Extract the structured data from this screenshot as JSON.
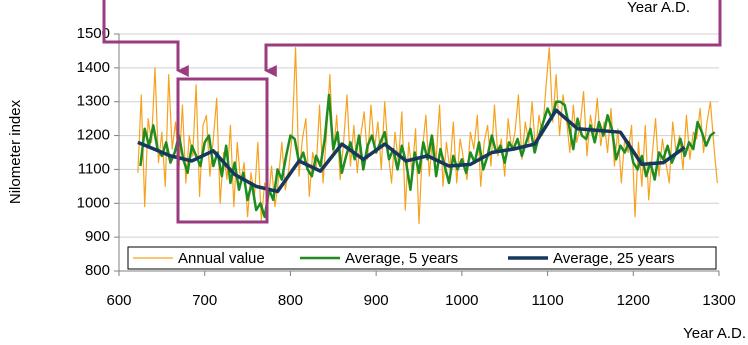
{
  "chart_data": {
    "type": "line",
    "ylabel": "Nilometer index",
    "xlabel": "Year A.D.",
    "annotation": "Year A.D.",
    "xlim": [
      600,
      1300
    ],
    "xticks": [
      600,
      700,
      800,
      900,
      1000,
      1100,
      1200,
      1300
    ],
    "ylim": [
      800,
      1500
    ],
    "yticks": [
      800,
      900,
      1000,
      1100,
      1200,
      1300,
      1400,
      1500
    ],
    "grid": true,
    "legend": "bottom",
    "series": [
      {
        "name": "Annual value",
        "color": "#f5a31f",
        "x": [
          622,
          626,
          630,
          634,
          638,
          642,
          646,
          650,
          654,
          658,
          662,
          666,
          670,
          674,
          678,
          682,
          686,
          690,
          694,
          698,
          702,
          706,
          710,
          714,
          718,
          722,
          726,
          730,
          734,
          738,
          742,
          746,
          750,
          754,
          758,
          762,
          766,
          770,
          774,
          778,
          782,
          786,
          790,
          794,
          798,
          802,
          806,
          810,
          814,
          818,
          822,
          826,
          830,
          834,
          838,
          842,
          846,
          850,
          854,
          858,
          862,
          866,
          870,
          874,
          878,
          882,
          886,
          890,
          894,
          898,
          902,
          906,
          910,
          914,
          918,
          922,
          926,
          930,
          934,
          938,
          942,
          946,
          950,
          954,
          958,
          962,
          966,
          970,
          974,
          978,
          982,
          986,
          990,
          994,
          998,
          1002,
          1006,
          1010,
          1014,
          1018,
          1022,
          1026,
          1030,
          1034,
          1038,
          1042,
          1046,
          1050,
          1054,
          1058,
          1062,
          1066,
          1070,
          1074,
          1078,
          1082,
          1086,
          1090,
          1094,
          1098,
          1102,
          1106,
          1110,
          1114,
          1118,
          1122,
          1126,
          1130,
          1134,
          1138,
          1142,
          1146,
          1150,
          1154,
          1158,
          1162,
          1166,
          1170,
          1174,
          1178,
          1182,
          1186,
          1190,
          1194,
          1198,
          1202,
          1206,
          1210,
          1214,
          1218,
          1222,
          1226,
          1230,
          1234,
          1238,
          1242,
          1246,
          1250,
          1254,
          1258,
          1262,
          1266,
          1270,
          1274,
          1278,
          1282,
          1286,
          1290,
          1294,
          1298
        ],
        "values": [
          1090,
          1320,
          990,
          1250,
          1180,
          1400,
          1120,
          1210,
          1050,
          1380,
          1160,
          1240,
          1100,
          1290,
          1060,
          1200,
          1140,
          1350,
          1020,
          1230,
          1260,
          1080,
          1190,
          1310,
          1000,
          1150,
          1070,
          1230,
          990,
          1180,
          1060,
          1120,
          960,
          1090,
          1020,
          1180,
          950,
          1060,
          1000,
          1110,
          990,
          1070,
          1180,
          1040,
          1100,
          1200,
          1460,
          1080,
          1190,
          1250,
          1020,
          1150,
          1100,
          1290,
          1060,
          1200,
          1380,
          1140,
          1260,
          1070,
          1180,
          1320,
          1110,
          1230,
          1090,
          1200,
          1270,
          1130,
          1290,
          1160,
          1240,
          1100,
          1300,
          1150,
          1060,
          1210,
          1120,
          1270,
          980,
          1180,
          1090,
          1220,
          940,
          1160,
          1260,
          1080,
          1200,
          1130,
          1290,
          1050,
          1180,
          1100,
          1240,
          1060,
          1190,
          1130,
          1070,
          1210,
          1160,
          1260,
          1050,
          1180,
          1230,
          1110,
          1290,
          1140,
          1190,
          1080,
          1250,
          1160,
          1210,
          1320,
          1130,
          1240,
          1180,
          1300,
          1150,
          1260,
          1200,
          1340,
          1460,
          1240,
          1380,
          1200,
          1320,
          1250,
          1150,
          1290,
          1180,
          1230,
          1330,
          1140,
          1260,
          1200,
          1310,
          1170,
          1240,
          1150,
          1280,
          1110,
          1220,
          1060,
          1190,
          1150,
          1230,
          960,
          1180,
          1050,
          1230,
          1010,
          1140,
          1250,
          1080,
          1190,
          1120,
          1060,
          1240,
          1150,
          1200,
          1100,
          1260,
          1130,
          1210,
          1190,
          1280,
          1150,
          1240,
          1300,
          1170,
          1060
        ]
      },
      {
        "name": "Average, 5 years",
        "color": "#1e8c1e",
        "x": [
          625,
          630,
          635,
          640,
          645,
          650,
          655,
          660,
          665,
          670,
          675,
          680,
          685,
          690,
          695,
          700,
          705,
          710,
          715,
          720,
          725,
          730,
          735,
          740,
          745,
          750,
          755,
          760,
          765,
          770,
          775,
          780,
          785,
          790,
          795,
          800,
          805,
          810,
          815,
          820,
          825,
          830,
          835,
          840,
          845,
          850,
          855,
          860,
          865,
          870,
          875,
          880,
          885,
          890,
          895,
          900,
          905,
          910,
          915,
          920,
          925,
          930,
          935,
          940,
          945,
          950,
          955,
          960,
          965,
          970,
          975,
          980,
          985,
          990,
          995,
          1000,
          1005,
          1010,
          1015,
          1020,
          1025,
          1030,
          1035,
          1040,
          1045,
          1050,
          1055,
          1060,
          1065,
          1070,
          1075,
          1080,
          1085,
          1090,
          1095,
          1100,
          1105,
          1110,
          1115,
          1120,
          1125,
          1130,
          1135,
          1140,
          1145,
          1150,
          1155,
          1160,
          1165,
          1170,
          1175,
          1180,
          1185,
          1190,
          1195,
          1200,
          1205,
          1210,
          1215,
          1220,
          1225,
          1230,
          1235,
          1240,
          1245,
          1250,
          1255,
          1260,
          1265,
          1270,
          1275,
          1280,
          1285,
          1290,
          1295
        ],
        "values": [
          1110,
          1220,
          1170,
          1230,
          1160,
          1140,
          1180,
          1120,
          1150,
          1200,
          1130,
          1090,
          1170,
          1140,
          1110,
          1180,
          1200,
          1110,
          1150,
          1080,
          1170,
          1060,
          1120,
          1040,
          1090,
          1010,
          1060,
          980,
          1000,
          960,
          1040,
          1010,
          1100,
          1070,
          1140,
          1200,
          1190,
          1120,
          1150,
          1100,
          1080,
          1140,
          1110,
          1190,
          1320,
          1160,
          1210,
          1090,
          1140,
          1180,
          1130,
          1200,
          1100,
          1170,
          1200,
          1150,
          1180,
          1210,
          1130,
          1160,
          1100,
          1170,
          1120,
          1040,
          1150,
          1090,
          1180,
          1130,
          1200,
          1080,
          1160,
          1110,
          1060,
          1140,
          1100,
          1130,
          1090,
          1150,
          1120,
          1180,
          1100,
          1140,
          1200,
          1150,
          1170,
          1120,
          1180,
          1160,
          1190,
          1140,
          1180,
          1220,
          1150,
          1200,
          1240,
          1280,
          1250,
          1300,
          1300,
          1290,
          1230,
          1160,
          1250,
          1200,
          1190,
          1230,
          1180,
          1240,
          1200,
          1260,
          1220,
          1130,
          1170,
          1150,
          1180,
          1120,
          1100,
          1140,
          1080,
          1120,
          1070,
          1150,
          1130,
          1170,
          1120,
          1150,
          1190,
          1140,
          1180,
          1160,
          1240,
          1210,
          1170,
          1200,
          1210
        ]
      },
      {
        "name": "Average, 25 years",
        "color": "#17375e",
        "x": [
          622,
          660,
          685,
          710,
          735,
          760,
          785,
          810,
          835,
          860,
          885,
          910,
          935,
          960,
          985,
          1010,
          1035,
          1060,
          1085,
          1110,
          1135,
          1160,
          1185,
          1210,
          1235,
          1260
        ],
        "values": [
          1180,
          1140,
          1125,
          1155,
          1085,
          1050,
          1035,
          1125,
          1095,
          1175,
          1130,
          1175,
          1125,
          1140,
          1110,
          1115,
          1150,
          1160,
          1175,
          1275,
          1220,
          1215,
          1210,
          1115,
          1120,
          1165
        ]
      }
    ]
  }
}
